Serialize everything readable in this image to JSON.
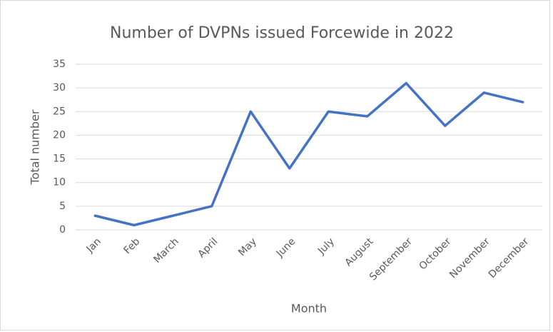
{
  "chart_data": {
    "type": "line",
    "title": "Number of DVPNs issued Forcewide in 2022",
    "x_label": "Month",
    "y_label": "Total number",
    "categories": [
      "Jan",
      "Feb",
      "March",
      "April",
      "May",
      "June",
      "July",
      "August",
      "September",
      "October",
      "November",
      "December"
    ],
    "values": [
      3,
      1,
      3,
      5,
      25,
      13,
      25,
      24,
      31,
      22,
      29,
      27
    ],
    "color": "#4472c4",
    "ylim": [
      0,
      35
    ],
    "yticks": [
      0,
      5,
      10,
      15,
      20,
      25,
      30,
      35
    ],
    "grid": true
  }
}
